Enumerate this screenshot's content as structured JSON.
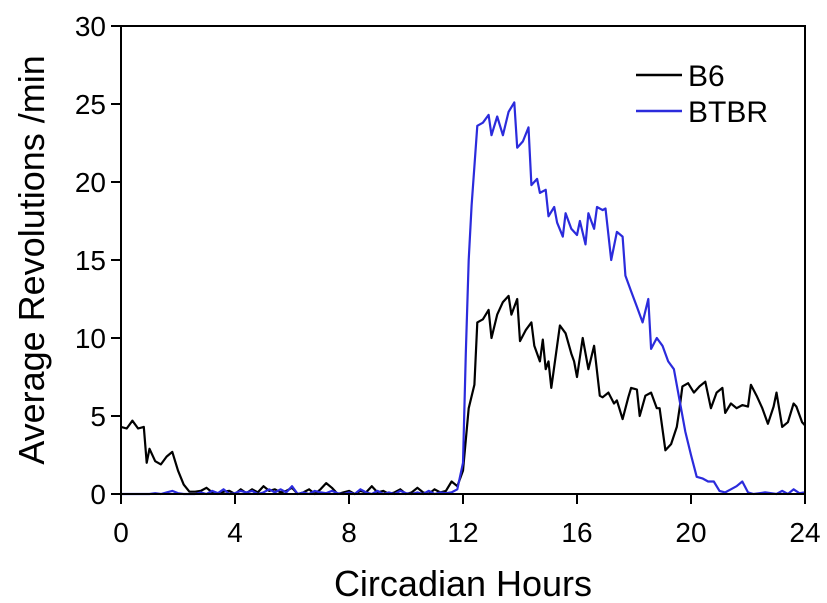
{
  "chart_data": {
    "type": "line",
    "xlabel": "Circadian Hours",
    "ylabel": "Average Revolutions /min",
    "xlim": [
      0,
      24
    ],
    "ylim": [
      0,
      30
    ],
    "xticks": [
      0,
      4,
      8,
      12,
      16,
      20,
      24
    ],
    "yticks": [
      0,
      5,
      10,
      15,
      20,
      25,
      30
    ],
    "grid": false,
    "legend": "top-right",
    "series": [
      {
        "name": "B6",
        "color": "#000000",
        "points": [
          [
            0,
            4.3
          ],
          [
            0.2,
            4.2
          ],
          [
            0.4,
            4.7
          ],
          [
            0.6,
            4.2
          ],
          [
            0.8,
            4.3
          ],
          [
            0.9,
            2.0
          ],
          [
            1.0,
            2.9
          ],
          [
            1.2,
            2.1
          ],
          [
            1.4,
            1.9
          ],
          [
            1.6,
            2.4
          ],
          [
            1.8,
            2.7
          ],
          [
            2.0,
            1.5
          ],
          [
            2.2,
            0.6
          ],
          [
            2.4,
            0.15
          ],
          [
            2.6,
            0.15
          ],
          [
            2.8,
            0.2
          ],
          [
            3.0,
            0.4
          ],
          [
            3.2,
            0.1
          ],
          [
            3.4,
            0.0
          ],
          [
            3.6,
            0.15
          ],
          [
            3.8,
            0.2
          ],
          [
            4.0,
            0.0
          ],
          [
            4.2,
            0.3
          ],
          [
            4.4,
            0.05
          ],
          [
            4.6,
            0.3
          ],
          [
            4.8,
            0.1
          ],
          [
            5.0,
            0.5
          ],
          [
            5.2,
            0.2
          ],
          [
            5.4,
            0.3
          ],
          [
            5.6,
            0.1
          ],
          [
            5.8,
            0.2
          ],
          [
            6.0,
            0.4
          ],
          [
            6.2,
            0.0
          ],
          [
            6.4,
            0.1
          ],
          [
            6.6,
            0.3
          ],
          [
            6.8,
            0.0
          ],
          [
            7.0,
            0.3
          ],
          [
            7.2,
            0.7
          ],
          [
            7.4,
            0.4
          ],
          [
            7.6,
            0.0
          ],
          [
            7.8,
            0.1
          ],
          [
            8.0,
            0.2
          ],
          [
            8.2,
            0.0
          ],
          [
            8.4,
            0.2
          ],
          [
            8.6,
            0.1
          ],
          [
            8.8,
            0.5
          ],
          [
            9.0,
            0.1
          ],
          [
            9.2,
            0.2
          ],
          [
            9.4,
            0.0
          ],
          [
            9.6,
            0.1
          ],
          [
            9.8,
            0.3
          ],
          [
            10.0,
            0.0
          ],
          [
            10.2,
            0.1
          ],
          [
            10.4,
            0.4
          ],
          [
            10.6,
            0.1
          ],
          [
            10.8,
            0.0
          ],
          [
            11.0,
            0.3
          ],
          [
            11.2,
            0.1
          ],
          [
            11.4,
            0.2
          ],
          [
            11.6,
            0.8
          ],
          [
            11.8,
            0.5
          ],
          [
            12.0,
            1.5
          ],
          [
            12.2,
            5.5
          ],
          [
            12.4,
            7.0
          ],
          [
            12.5,
            11.0
          ],
          [
            12.7,
            11.2
          ],
          [
            12.9,
            11.8
          ],
          [
            13.0,
            10.0
          ],
          [
            13.2,
            11.5
          ],
          [
            13.4,
            12.3
          ],
          [
            13.6,
            12.7
          ],
          [
            13.7,
            11.5
          ],
          [
            13.9,
            12.5
          ],
          [
            14.0,
            9.8
          ],
          [
            14.2,
            10.5
          ],
          [
            14.4,
            11.0
          ],
          [
            14.5,
            9.5
          ],
          [
            14.7,
            8.5
          ],
          [
            14.8,
            9.9
          ],
          [
            14.9,
            8.0
          ],
          [
            15.0,
            8.5
          ],
          [
            15.1,
            6.8
          ],
          [
            15.3,
            9.5
          ],
          [
            15.4,
            10.8
          ],
          [
            15.6,
            10.3
          ],
          [
            15.8,
            9.0
          ],
          [
            15.9,
            8.5
          ],
          [
            16.0,
            7.5
          ],
          [
            16.2,
            10.0
          ],
          [
            16.4,
            8.0
          ],
          [
            16.6,
            9.5
          ],
          [
            16.8,
            6.3
          ],
          [
            16.9,
            6.2
          ],
          [
            17.1,
            6.5
          ],
          [
            17.3,
            5.8
          ],
          [
            17.4,
            6.0
          ],
          [
            17.6,
            4.8
          ],
          [
            17.8,
            6.2
          ],
          [
            17.9,
            6.8
          ],
          [
            18.1,
            6.7
          ],
          [
            18.2,
            5.0
          ],
          [
            18.4,
            6.3
          ],
          [
            18.6,
            6.5
          ],
          [
            18.8,
            5.5
          ],
          [
            18.9,
            5.5
          ],
          [
            19.1,
            2.8
          ],
          [
            19.3,
            3.2
          ],
          [
            19.5,
            4.3
          ],
          [
            19.6,
            5.5
          ],
          [
            19.7,
            6.9
          ],
          [
            19.9,
            7.1
          ],
          [
            20.1,
            6.5
          ],
          [
            20.3,
            6.9
          ],
          [
            20.5,
            7.2
          ],
          [
            20.7,
            5.5
          ],
          [
            20.9,
            6.5
          ],
          [
            21.1,
            6.8
          ],
          [
            21.2,
            5.2
          ],
          [
            21.4,
            5.8
          ],
          [
            21.6,
            5.5
          ],
          [
            21.8,
            5.7
          ],
          [
            22.0,
            5.6
          ],
          [
            22.1,
            7.0
          ],
          [
            22.3,
            6.3
          ],
          [
            22.5,
            5.5
          ],
          [
            22.7,
            4.5
          ],
          [
            22.9,
            5.6
          ],
          [
            23.0,
            6.5
          ],
          [
            23.2,
            4.3
          ],
          [
            23.4,
            4.6
          ],
          [
            23.6,
            5.8
          ],
          [
            23.7,
            5.6
          ],
          [
            23.9,
            4.6
          ],
          [
            24.0,
            4.4
          ]
        ]
      },
      {
        "name": "BTBR",
        "color": "#2b2bdc",
        "points": [
          [
            0,
            0.0
          ],
          [
            1.0,
            0.0
          ],
          [
            1.2,
            0.05
          ],
          [
            1.4,
            0.0
          ],
          [
            1.6,
            0.1
          ],
          [
            1.8,
            0.2
          ],
          [
            2.0,
            0.05
          ],
          [
            2.2,
            0.0
          ],
          [
            2.6,
            0.0
          ],
          [
            2.8,
            0.1
          ],
          [
            3.0,
            0.0
          ],
          [
            3.2,
            0.2
          ],
          [
            3.4,
            0.05
          ],
          [
            3.6,
            0.3
          ],
          [
            3.8,
            0.0
          ],
          [
            4.0,
            0.05
          ],
          [
            4.2,
            0.2
          ],
          [
            4.4,
            0.1
          ],
          [
            4.6,
            0.2
          ],
          [
            4.8,
            0.0
          ],
          [
            5.0,
            0.1
          ],
          [
            5.2,
            0.3
          ],
          [
            5.4,
            0.1
          ],
          [
            5.6,
            0.3
          ],
          [
            5.8,
            0.1
          ],
          [
            6.0,
            0.5
          ],
          [
            6.2,
            0.0
          ],
          [
            6.4,
            0.1
          ],
          [
            6.6,
            0.0
          ],
          [
            6.8,
            0.2
          ],
          [
            7.0,
            0.1
          ],
          [
            7.2,
            0.05
          ],
          [
            7.4,
            0.2
          ],
          [
            7.6,
            0.05
          ],
          [
            7.8,
            0.0
          ],
          [
            8.0,
            0.1
          ],
          [
            8.2,
            0.0
          ],
          [
            8.4,
            0.3
          ],
          [
            8.6,
            0.1
          ],
          [
            8.8,
            0.0
          ],
          [
            9.0,
            0.2
          ],
          [
            9.2,
            0.0
          ],
          [
            9.4,
            0.1
          ],
          [
            9.6,
            0.0
          ],
          [
            9.8,
            0.2
          ],
          [
            10.0,
            0.05
          ],
          [
            10.2,
            0.0
          ],
          [
            10.4,
            0.1
          ],
          [
            10.6,
            0.0
          ],
          [
            10.8,
            0.2
          ],
          [
            11.0,
            0.0
          ],
          [
            11.2,
            0.1
          ],
          [
            11.4,
            0.05
          ],
          [
            11.6,
            0.1
          ],
          [
            11.8,
            0.3
          ],
          [
            12.0,
            2.0
          ],
          [
            12.1,
            9.0
          ],
          [
            12.2,
            15.0
          ],
          [
            12.3,
            18.5
          ],
          [
            12.4,
            21.0
          ],
          [
            12.5,
            23.6
          ],
          [
            12.7,
            23.8
          ],
          [
            12.9,
            24.3
          ],
          [
            13.0,
            23.0
          ],
          [
            13.2,
            24.2
          ],
          [
            13.4,
            23.0
          ],
          [
            13.6,
            24.5
          ],
          [
            13.8,
            25.1
          ],
          [
            13.9,
            22.2
          ],
          [
            14.1,
            22.6
          ],
          [
            14.3,
            23.5
          ],
          [
            14.4,
            19.8
          ],
          [
            14.6,
            20.2
          ],
          [
            14.7,
            19.3
          ],
          [
            14.9,
            19.5
          ],
          [
            15.0,
            17.8
          ],
          [
            15.2,
            18.4
          ],
          [
            15.3,
            17.4
          ],
          [
            15.5,
            16.5
          ],
          [
            15.6,
            18.0
          ],
          [
            15.8,
            17.0
          ],
          [
            16.0,
            16.6
          ],
          [
            16.1,
            17.5
          ],
          [
            16.3,
            16.0
          ],
          [
            16.4,
            18.0
          ],
          [
            16.6,
            17.0
          ],
          [
            16.7,
            18.4
          ],
          [
            16.9,
            18.2
          ],
          [
            17.0,
            18.3
          ],
          [
            17.2,
            15.0
          ],
          [
            17.4,
            16.8
          ],
          [
            17.6,
            16.5
          ],
          [
            17.7,
            14.0
          ],
          [
            17.9,
            13.0
          ],
          [
            18.1,
            12.0
          ],
          [
            18.3,
            11.0
          ],
          [
            18.5,
            12.5
          ],
          [
            18.6,
            9.3
          ],
          [
            18.8,
            10.0
          ],
          [
            19.0,
            9.5
          ],
          [
            19.2,
            8.5
          ],
          [
            19.4,
            8.0
          ],
          [
            19.6,
            6.0
          ],
          [
            19.8,
            4.0
          ],
          [
            20.0,
            2.5
          ],
          [
            20.2,
            1.1
          ],
          [
            20.4,
            1.0
          ],
          [
            20.6,
            0.8
          ],
          [
            20.8,
            0.8
          ],
          [
            21.0,
            0.2
          ],
          [
            21.2,
            0.1
          ],
          [
            21.4,
            0.3
          ],
          [
            21.6,
            0.5
          ],
          [
            21.8,
            0.8
          ],
          [
            22.0,
            0.1
          ],
          [
            22.2,
            0.0
          ],
          [
            22.6,
            0.1
          ],
          [
            23.0,
            0.0
          ],
          [
            23.2,
            0.2
          ],
          [
            23.4,
            0.0
          ],
          [
            23.6,
            0.3
          ],
          [
            23.8,
            0.05
          ],
          [
            24.0,
            0.1
          ]
        ]
      }
    ]
  }
}
